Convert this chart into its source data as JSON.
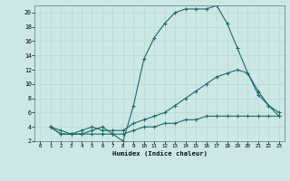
{
  "xlabel": "Humidex (Indice chaleur)",
  "background_color": "#cce8e4",
  "grid_color": "#b8d8d4",
  "line_color": "#1a6b6b",
  "xlim": [
    -0.5,
    23.5
  ],
  "ylim": [
    2,
    21
  ],
  "yticks": [
    2,
    4,
    6,
    8,
    10,
    12,
    14,
    16,
    18,
    20
  ],
  "xticks": [
    0,
    1,
    2,
    3,
    4,
    5,
    6,
    7,
    8,
    9,
    10,
    11,
    12,
    13,
    14,
    15,
    16,
    17,
    18,
    19,
    20,
    21,
    22,
    23
  ],
  "line1_x": [
    1,
    2,
    3,
    4,
    5,
    6,
    7,
    8,
    9,
    10,
    11,
    12,
    13,
    14,
    15,
    16,
    17,
    18,
    19,
    20,
    21,
    22,
    23
  ],
  "line1_y": [
    4.0,
    3.5,
    3.0,
    3.0,
    3.5,
    4.0,
    3.0,
    2.0,
    7.0,
    13.5,
    16.5,
    18.5,
    20.0,
    20.5,
    20.5,
    20.5,
    21.0,
    18.5,
    15.0,
    11.5,
    8.5,
    7.0,
    5.5
  ],
  "line2_x": [
    1,
    2,
    3,
    4,
    5,
    6,
    7,
    8,
    9,
    10,
    11,
    12,
    13,
    14,
    15,
    16,
    17,
    18,
    19,
    20,
    21,
    22,
    23
  ],
  "line2_y": [
    4.0,
    3.0,
    3.0,
    3.5,
    4.0,
    3.5,
    3.5,
    3.5,
    4.5,
    5.0,
    5.5,
    6.0,
    7.0,
    8.0,
    9.0,
    10.0,
    11.0,
    11.5,
    12.0,
    11.5,
    9.0,
    7.0,
    6.0
  ],
  "line3_x": [
    1,
    2,
    3,
    4,
    5,
    6,
    7,
    8,
    9,
    10,
    11,
    12,
    13,
    14,
    15,
    16,
    17,
    18,
    19,
    20,
    21,
    22,
    23
  ],
  "line3_y": [
    4.0,
    3.0,
    3.0,
    3.0,
    3.0,
    3.0,
    3.0,
    3.0,
    3.5,
    4.0,
    4.0,
    4.5,
    4.5,
    5.0,
    5.0,
    5.5,
    5.5,
    5.5,
    5.5,
    5.5,
    5.5,
    5.5,
    5.5
  ]
}
